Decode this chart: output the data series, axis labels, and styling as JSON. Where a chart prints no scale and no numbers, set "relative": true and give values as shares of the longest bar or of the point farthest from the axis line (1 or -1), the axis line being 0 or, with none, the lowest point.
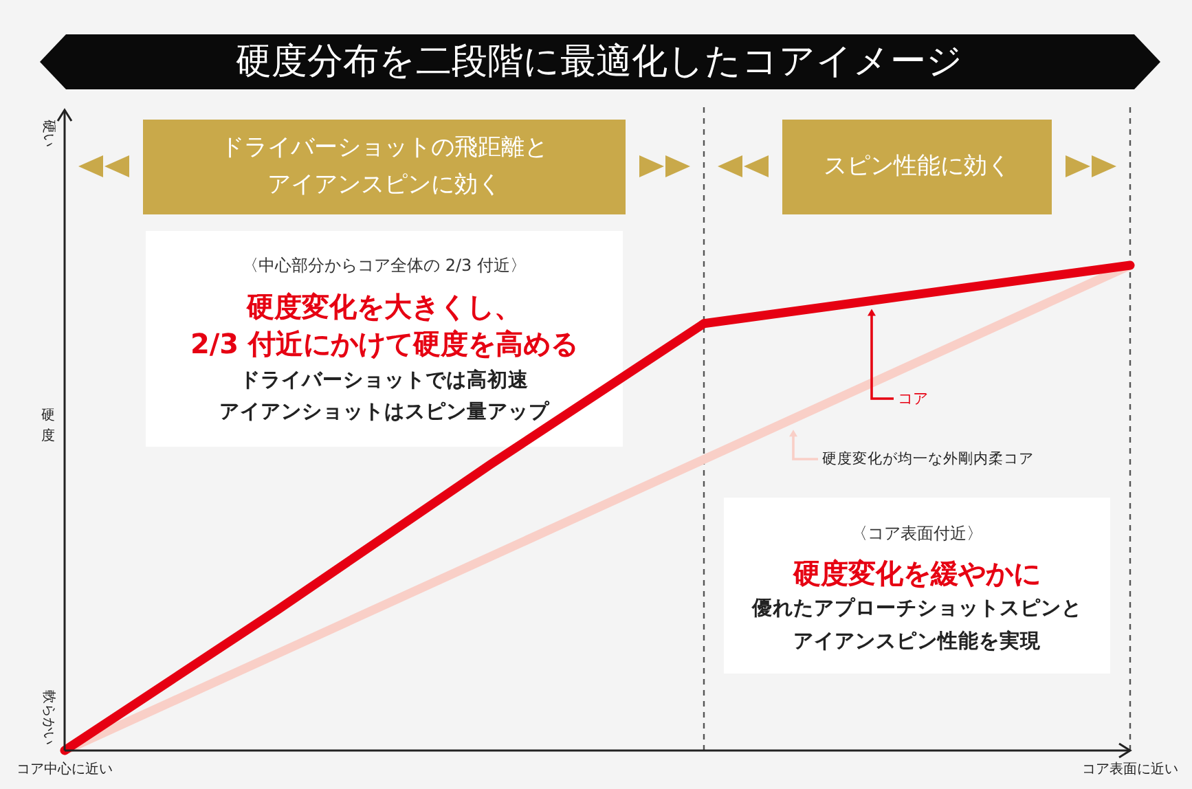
{
  "chart_data": {
    "type": "line",
    "title": "硬度分布を二段階に最適化したコアイメージ",
    "ylabel": "硬度",
    "relative": true,
    "categories": [
      "コア中心に近い",
      null,
      null,
      null,
      null,
      "コア表面に近い"
    ],
    "series": [
      {
        "name": "硬度変化が均一な外剛内柔コア",
        "color": "#f9cfc7",
        "values": [
          0,
          0.2,
          0.4,
          0.6,
          0.8,
          1
        ]
      },
      {
        "name": "コア",
        "color": "#e60012",
        "values": [
          0,
          0.29,
          0.59,
          0.88,
          0.94,
          1
        ]
      }
    ],
    "annotations": [
      "硬い",
      "軟らかい",
      "ドライバーショットの飛距離と",
      "アイアンスピンに効く",
      "スピン性能に効く",
      "〈中心部分からコア全体の 2/3 付近〉",
      "硬度変化を大きくし、",
      "2/3 付近にかけて硬度を高める",
      "ドライバーショットでは高初速",
      "アイアンショットはスピン量アップ",
      "〈コア表面付近〉",
      "硬度変化を緩やかに",
      "優れたアプローチショットスピンと",
      "アイアンスピン性能を実現"
    ]
  }
}
